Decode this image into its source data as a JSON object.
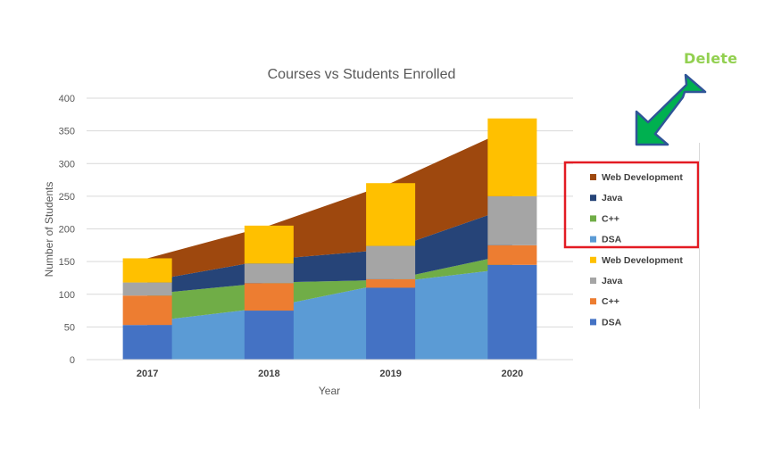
{
  "annotation": {
    "delete_label": "Delete"
  },
  "colors": {
    "web_area": "#9e480e",
    "java_area": "#264478",
    "cpp_area": "#70ad47",
    "dsa_area": "#5b9bd5",
    "web_bar": "#ffc000",
    "java_bar": "#a5a5a5",
    "cpp_bar": "#ed7d31",
    "dsa_bar": "#4472c4",
    "highlight_box": "#e31b23",
    "arrow_fill": "#00b050",
    "arrow_stroke": "#2f5597"
  },
  "chart_data": {
    "type": "bar",
    "subtype": "stacked column with stacked area",
    "title": "Courses vs Students Enrolled",
    "xlabel": "Year",
    "ylabel": "Number of Students",
    "categories": [
      "2017",
      "2018",
      "2019",
      "2020"
    ],
    "ylim": [
      0,
      400
    ],
    "yticks": [
      0,
      50,
      100,
      150,
      200,
      250,
      300,
      350,
      400
    ],
    "grid": true,
    "legend_position": "right",
    "area_series": [
      {
        "name": "DSA",
        "values": [
          58,
          80,
          118,
          140
        ]
      },
      {
        "name": "C++",
        "values": [
          42,
          38,
          4,
          22
        ]
      },
      {
        "name": "Java",
        "values": [
          20,
          35,
          47,
          72
        ]
      },
      {
        "name": "Web Development",
        "values": [
          35,
          52,
          101,
          121
        ]
      }
    ],
    "bar_series": [
      {
        "name": "DSA",
        "values": [
          53,
          75,
          110,
          145
        ]
      },
      {
        "name": "C++",
        "values": [
          45,
          42,
          13,
          30
        ]
      },
      {
        "name": "Java",
        "values": [
          20,
          30,
          51,
          75
        ]
      },
      {
        "name": "Web Development",
        "values": [
          37,
          58,
          96,
          119
        ]
      }
    ],
    "legend": [
      {
        "label": "Web Development",
        "kind": "area",
        "index": 3
      },
      {
        "label": "Java",
        "kind": "area",
        "index": 2
      },
      {
        "label": "C++",
        "kind": "area",
        "index": 1
      },
      {
        "label": "DSA",
        "kind": "area",
        "index": 0
      },
      {
        "label": "Web Development",
        "kind": "bar",
        "index": 3
      },
      {
        "label": "Java",
        "kind": "bar",
        "index": 2
      },
      {
        "label": "C++",
        "kind": "bar",
        "index": 1
      },
      {
        "label": "DSA",
        "kind": "bar",
        "index": 0
      }
    ]
  }
}
